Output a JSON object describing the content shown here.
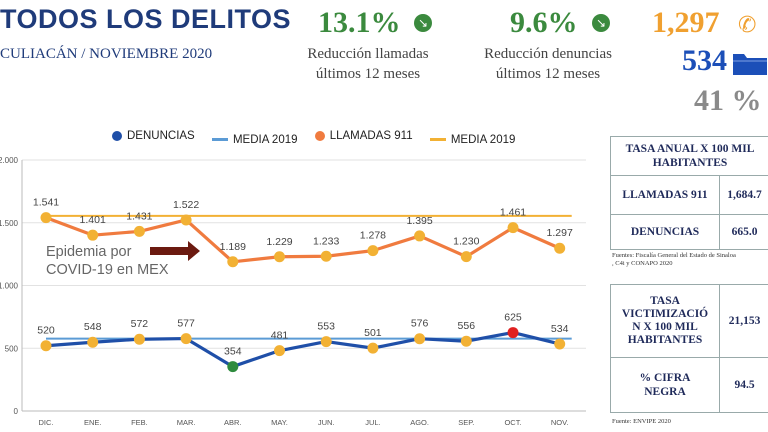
{
  "header": {
    "title": "TODOS LOS DELITOS",
    "subtitle": "CULIACÁN / NOVIEMBRE 2020"
  },
  "kpis": {
    "calls_reduction": {
      "value": "13.1%",
      "caption1": "Reducción llamadas",
      "caption2": "últimos 12 meses"
    },
    "reports_reduction": {
      "value": "9.6%",
      "caption1": "Reducción denuncias",
      "caption2": "últimos 12 meses"
    },
    "calls_month": "1,297",
    "reports_month": "534",
    "ratio": "41 %"
  },
  "colors": {
    "navy": "#1f3b7a",
    "orange": "#f07b3f",
    "gold": "#f2b134",
    "blue": "#1f4fa8",
    "lightblue": "#5b9bd5",
    "green": "#2e8b3e",
    "red": "#e02020",
    "kpi_green": "#3b8a3e",
    "calls_orange": "#f0a030",
    "folder_blue": "#1c4fb8"
  },
  "icons": {
    "down_arrow": "down-right-arrow-icon",
    "phone": "phone-icon",
    "folder": "folder-icon"
  },
  "chart_data": {
    "type": "line",
    "categories": [
      "DIC.",
      "ENE.",
      "FEB.",
      "MAR.",
      "ABR.",
      "MAY.",
      "JUN.",
      "JUL.",
      "AGO.",
      "SEP.",
      "OCT.",
      "NOV."
    ],
    "series": [
      {
        "name": "DENUNCIAS",
        "values": [
          520,
          548,
          572,
          577,
          354,
          481,
          553,
          501,
          576,
          556,
          625,
          534
        ],
        "labels": [
          "520",
          "548",
          "572",
          "577",
          "354",
          "481",
          "553",
          "501",
          "576",
          "556",
          "625",
          "534"
        ]
      },
      {
        "name": "MEDIA 2019",
        "values": [
          577,
          577,
          577,
          577,
          577,
          577,
          577,
          577,
          577,
          577,
          577,
          577
        ]
      },
      {
        "name": "LLAMADAS 911",
        "values": [
          1541,
          1401,
          1431,
          1522,
          1189,
          1229,
          1233,
          1278,
          1395,
          1230,
          1461,
          1297
        ],
        "labels": [
          "1.541",
          "1.401",
          "1.431",
          "1.522",
          "1.189",
          "1.229",
          "1.233",
          "1.278",
          "1.395",
          "1.230",
          "1.461",
          "1.297"
        ]
      },
      {
        "name": "MEDIA 2019",
        "values": [
          1555,
          1555,
          1555,
          1555,
          1555,
          1555,
          1555,
          1555,
          1555,
          1555,
          1555,
          1555
        ]
      }
    ],
    "y_ticks": [
      0,
      500,
      1000,
      1500,
      2000
    ],
    "y_tick_labels": [
      "0",
      "500",
      "1.000",
      "1.500",
      "2.000"
    ],
    "ylim": [
      0,
      2000
    ],
    "legend_position": "top",
    "annotation": {
      "line1": "Epidemia por",
      "line2": "COVID-19 en MEX"
    }
  },
  "table1": {
    "header": "TASA ANUAL X 100 MIL HABITANTES",
    "header_line1": "TASA ANUAL X 100 MIL",
    "header_line2": "HABITANTES",
    "rows": [
      {
        "label": "LLAMADAS 911",
        "value": "1,684.7"
      },
      {
        "label": "DENUNCIAS",
        "value": "665.0"
      }
    ],
    "source1": "Fuentes: Fiscalía General del Estado de Sinaloa",
    "source2": ", C4i y CONAPO 2020"
  },
  "table2": {
    "rows": [
      {
        "label_line1": "TASA",
        "label_line2": "VICTIMIZACIÓ",
        "label_line3": "N X 100 MIL",
        "label_line4": "HABITANTES",
        "value": "21,153"
      },
      {
        "label_line1": "% CIFRA",
        "label_line2": "NEGRA",
        "value": "94.5"
      }
    ],
    "source": "Fuente: ENVIPE 2020"
  }
}
